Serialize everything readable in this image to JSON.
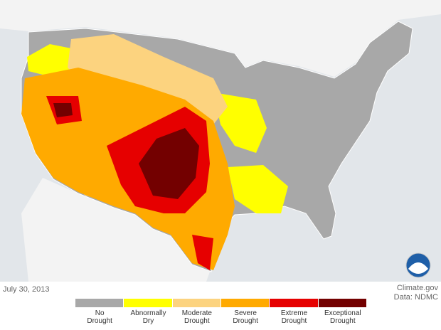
{
  "date": "July 30, 2013",
  "credit": "Climate.gov",
  "source": "Data: NDMC",
  "legend": [
    {
      "label": "No Drought",
      "color": "#a8a8a8"
    },
    {
      "label": "Abnormally Dry",
      "color": "#ffff00"
    },
    {
      "label": "Moderate Drought",
      "color": "#fcd37f"
    },
    {
      "label": "Severe Drought",
      "color": "#ffaa00"
    },
    {
      "label": "Extreme Drought",
      "color": "#e60000"
    },
    {
      "label": "Exceptional Drought",
      "color": "#730000"
    }
  ]
}
